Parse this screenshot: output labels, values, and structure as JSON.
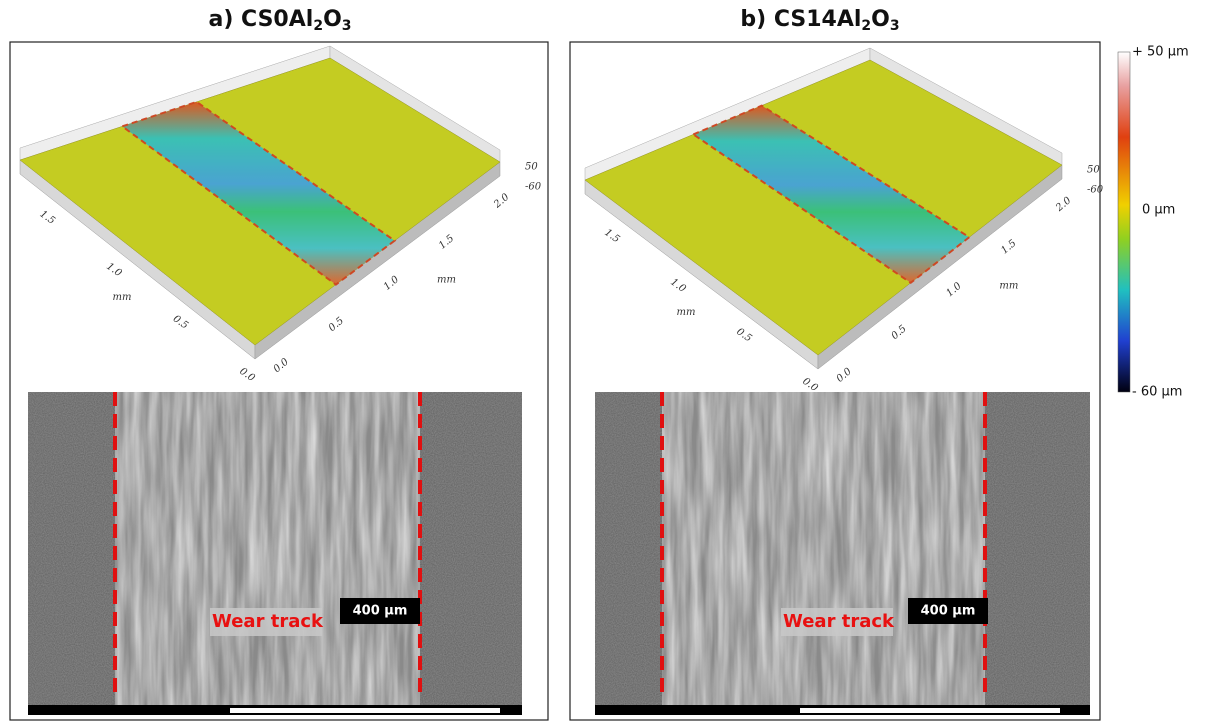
{
  "panels": [
    {
      "title": [
        "a) CS0Al",
        "2",
        "O",
        "3"
      ],
      "surface": {
        "left_ticks": [
          "1.5",
          "1.0",
          "0.5",
          "0.0"
        ],
        "left_unit": "mm",
        "right_ticks": [
          "0.0",
          "0.5",
          "1.0",
          "1.5",
          "2.0"
        ],
        "right_unit": "mm",
        "z_ticks": [
          "50",
          "-60"
        ]
      },
      "sem": {
        "label": "Wear track",
        "scale": "400 µm"
      }
    },
    {
      "title": [
        "b) CS14Al",
        "2",
        "O",
        "3"
      ],
      "surface": {
        "left_ticks": [
          "1.5",
          "1.0",
          "0.5",
          "0.0"
        ],
        "left_unit": "mm",
        "right_ticks": [
          "0.0",
          "0.5",
          "1.0",
          "1.5",
          "2.0"
        ],
        "right_unit": "mm",
        "z_ticks": [
          "50",
          "-60"
        ]
      },
      "sem": {
        "label": "Wear track",
        "scale": "400 µm"
      }
    }
  ],
  "colorbar": {
    "top": "+ 50 µm",
    "middle": "0 µm",
    "bottom": "- 60 µm"
  }
}
